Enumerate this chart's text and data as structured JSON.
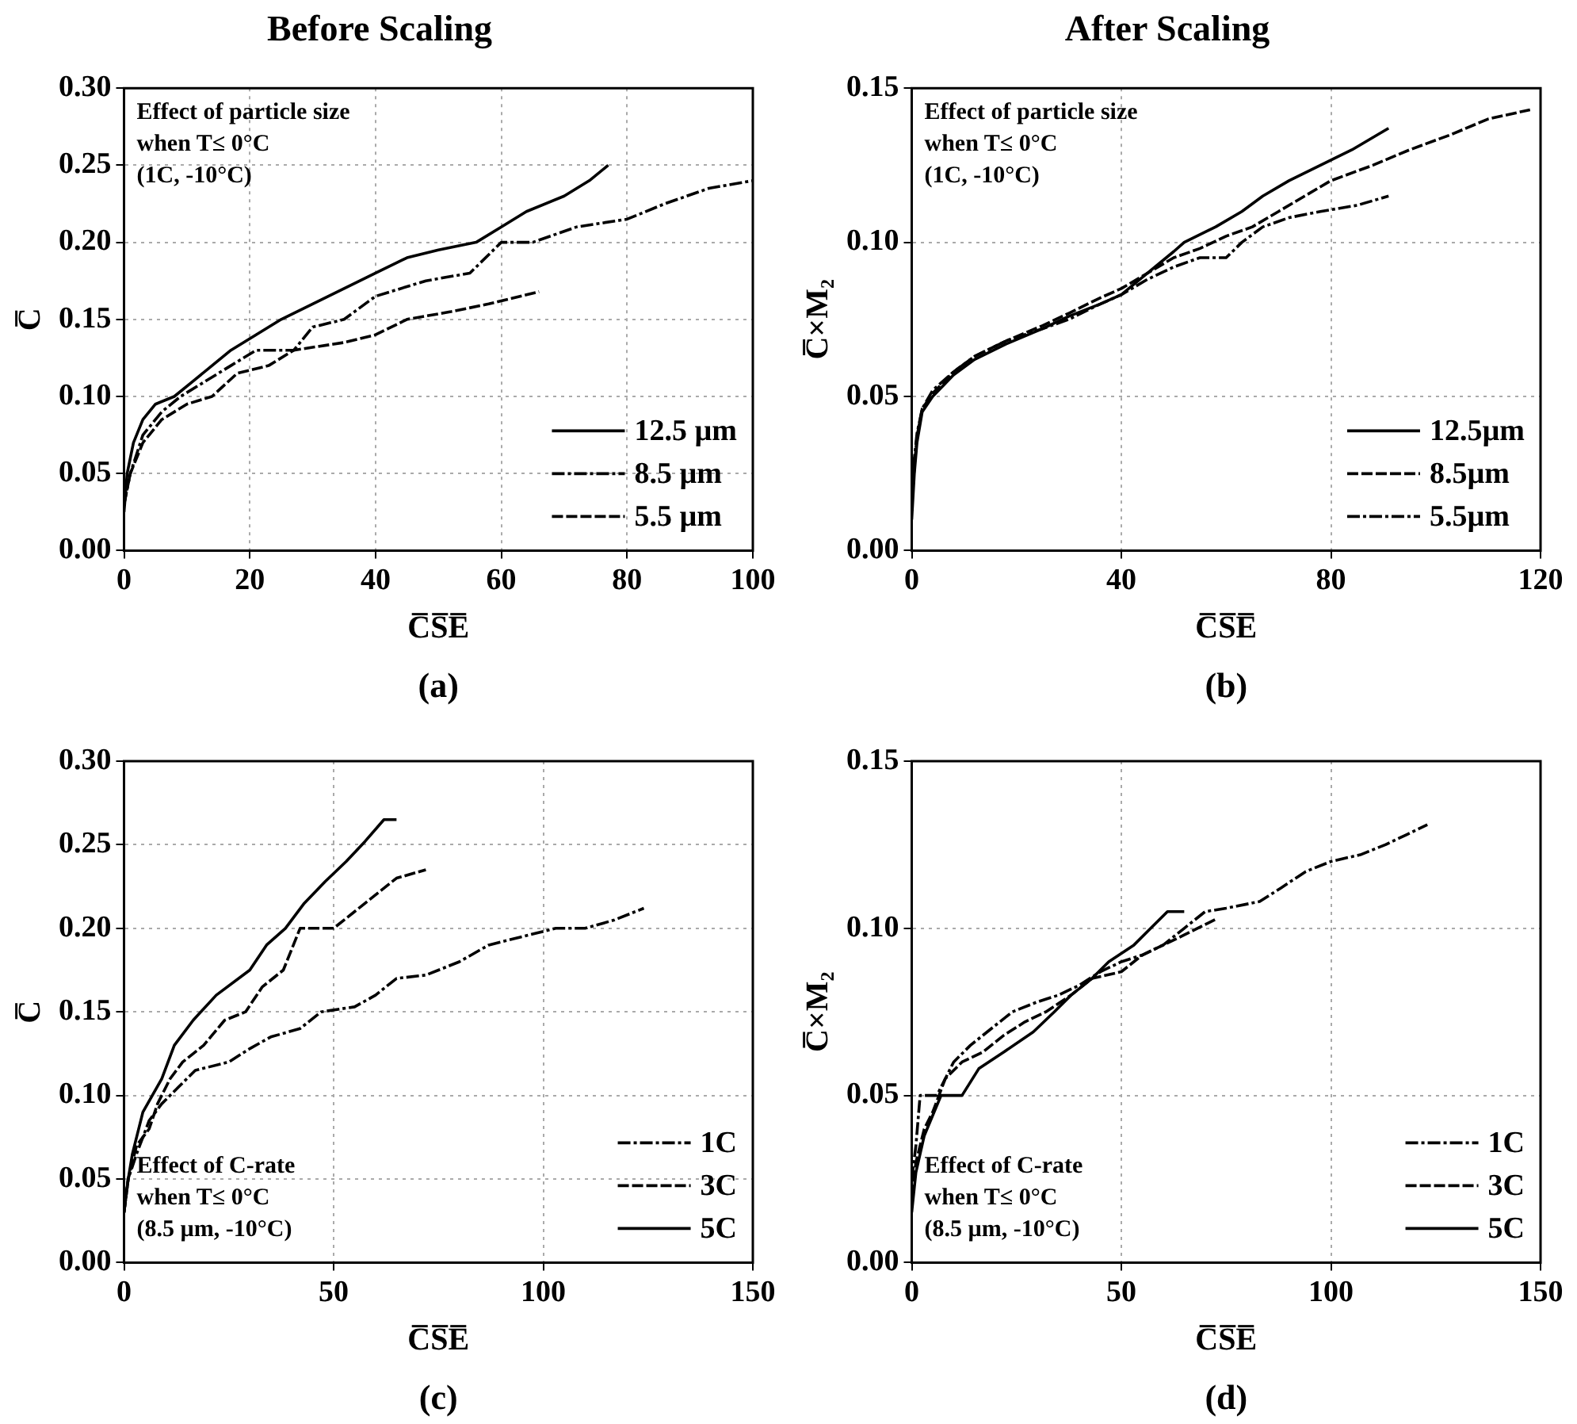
{
  "chart_data": [
    {
      "type": "line",
      "title": "Before Scaling",
      "xlabel": "C̅S̅E̅",
      "ylabel": "C̅",
      "annotations": [
        "Effect of particle size\nwhen T≤ 0°C\n(1C, -10°C)",
        "(a)"
      ],
      "xlim": [
        0,
        100
      ],
      "xticks": [
        0,
        20,
        40,
        60,
        80,
        100
      ],
      "ylim": [
        0,
        0.3
      ],
      "yticks": [
        {
          "value": 0,
          "label": "0.00"
        },
        {
          "value": 0.05,
          "label": "0.05"
        },
        {
          "value": 0.1,
          "label": "0.10"
        },
        {
          "value": 0.15,
          "label": "0.15"
        },
        {
          "value": 0.2,
          "label": "0.20"
        },
        {
          "value": 0.25,
          "label": "0.25"
        },
        {
          "value": 0.3,
          "label": "0.30"
        }
      ],
      "grid": true,
      "legend": "bottom right",
      "series": [
        {
          "name": "12.5 µm",
          "color": "#000000",
          "line_style": "solid",
          "x": [
            0,
            0.5,
            1.5,
            3,
            5,
            8,
            11,
            14,
            17,
            21,
            25,
            30,
            35,
            40,
            45,
            50,
            56,
            60,
            64,
            70,
            74,
            77
          ],
          "values": [
            0.025,
            0.05,
            0.07,
            0.085,
            0.095,
            0.1,
            0.11,
            0.12,
            0.13,
            0.14,
            0.15,
            0.16,
            0.17,
            0.18,
            0.19,
            0.195,
            0.2,
            0.21,
            0.22,
            0.23,
            0.24,
            0.25
          ]
        },
        {
          "name": "8.5 µm",
          "color": "#000000",
          "line_style": "dashdot",
          "x": [
            0,
            1,
            3,
            6,
            9,
            13,
            17,
            21,
            27,
            30,
            35,
            40,
            48,
            55,
            60,
            65,
            72,
            80,
            86,
            93,
            100
          ],
          "values": [
            0.03,
            0.05,
            0.075,
            0.09,
            0.1,
            0.11,
            0.12,
            0.13,
            0.13,
            0.145,
            0.15,
            0.165,
            0.175,
            0.18,
            0.2,
            0.2,
            0.21,
            0.215,
            0.225,
            0.235,
            0.24
          ]
        },
        {
          "name": "5.5 µm",
          "color": "#000000",
          "line_style": "dashed",
          "x": [
            0,
            1,
            3,
            6,
            10,
            14,
            18,
            23,
            27,
            35,
            40,
            45,
            52,
            58,
            66
          ],
          "values": [
            0.03,
            0.05,
            0.07,
            0.085,
            0.095,
            0.1,
            0.115,
            0.12,
            0.13,
            0.135,
            0.14,
            0.15,
            0.155,
            0.16,
            0.168
          ]
        }
      ]
    },
    {
      "type": "line",
      "title": "After Scaling",
      "xlabel": "C̅S̅E̅",
      "ylabel": "C̅×M₂",
      "annotations": [
        "Effect of particle size\nwhen T≤ 0°C\n(1C, -10°C)",
        "(b)"
      ],
      "xlim": [
        0,
        120
      ],
      "xticks": [
        0,
        40,
        80,
        120
      ],
      "ylim": [
        0,
        0.15
      ],
      "yticks": [
        {
          "value": 0,
          "label": "0.00"
        },
        {
          "value": 0.05,
          "label": "0.05"
        },
        {
          "value": 0.1,
          "label": "0.10"
        },
        {
          "value": 0.15,
          "label": "0.15"
        }
      ],
      "grid": true,
      "legend": "bottom right",
      "series": [
        {
          "name": "12.5µm",
          "color": "#000000",
          "line_style": "solid",
          "x": [
            0,
            0.5,
            1,
            2,
            4,
            8,
            12,
            18,
            25,
            30,
            36,
            40,
            45,
            50,
            52,
            58,
            63,
            67,
            72,
            78,
            84,
            89,
            91
          ],
          "values": [
            0.01,
            0.025,
            0.035,
            0.045,
            0.05,
            0.057,
            0.062,
            0.067,
            0.072,
            0.076,
            0.08,
            0.083,
            0.09,
            0.097,
            0.1,
            0.105,
            0.11,
            0.115,
            0.12,
            0.125,
            0.13,
            0.135,
            0.137
          ]
        },
        {
          "name": "8.5µm",
          "color": "#000000",
          "line_style": "dashed",
          "x": [
            0,
            0.5,
            1,
            2,
            4,
            8,
            12,
            18,
            25,
            30,
            36,
            40,
            45,
            50,
            55,
            60,
            65,
            70,
            75,
            80,
            88,
            95,
            103,
            110,
            118
          ],
          "values": [
            0.015,
            0.027,
            0.037,
            0.046,
            0.051,
            0.058,
            0.063,
            0.068,
            0.073,
            0.077,
            0.082,
            0.085,
            0.09,
            0.095,
            0.098,
            0.102,
            0.105,
            0.11,
            0.115,
            0.12,
            0.125,
            0.13,
            0.135,
            0.14,
            0.143
          ]
        },
        {
          "name": "5.5µm",
          "color": "#000000",
          "line_style": "dashdot",
          "x": [
            0,
            0.5,
            1,
            2,
            4,
            8,
            12,
            18,
            25,
            30,
            36,
            40,
            45,
            50,
            55,
            60,
            63,
            67,
            72,
            78,
            85,
            91
          ],
          "values": [
            0.02,
            0.03,
            0.038,
            0.046,
            0.052,
            0.058,
            0.063,
            0.068,
            0.072,
            0.075,
            0.08,
            0.083,
            0.088,
            0.092,
            0.095,
            0.095,
            0.1,
            0.105,
            0.108,
            0.11,
            0.112,
            0.115
          ]
        }
      ]
    },
    {
      "type": "line",
      "xlabel": "C̅S̅E̅",
      "ylabel": "C̅",
      "annotations": [
        "Effect of C-rate\nwhen T≤ 0°C\n(8.5 µm, -10°C)",
        "(c)"
      ],
      "xlim": [
        0,
        150
      ],
      "xticks": [
        0,
        50,
        100,
        150
      ],
      "ylim": [
        0,
        0.3
      ],
      "yticks": [
        {
          "value": 0,
          "label": "0.00"
        },
        {
          "value": 0.05,
          "label": "0.05"
        },
        {
          "value": 0.1,
          "label": "0.10"
        },
        {
          "value": 0.15,
          "label": "0.15"
        },
        {
          "value": 0.2,
          "label": "0.20"
        },
        {
          "value": 0.25,
          "label": "0.25"
        },
        {
          "value": 0.3,
          "label": "0.30"
        }
      ],
      "grid": true,
      "legend": "bottom right",
      "series": [
        {
          "name": "1C",
          "color": "#000000",
          "line_style": "dashdot",
          "x": [
            0,
            1,
            3,
            6,
            9,
            13,
            17,
            25,
            30,
            35,
            42,
            47,
            55,
            60,
            65,
            72,
            80,
            87,
            95,
            103,
            110,
            117,
            124
          ],
          "values": [
            0.03,
            0.05,
            0.065,
            0.085,
            0.095,
            0.105,
            0.115,
            0.12,
            0.128,
            0.135,
            0.14,
            0.15,
            0.153,
            0.16,
            0.17,
            0.172,
            0.18,
            0.19,
            0.195,
            0.2,
            0.2,
            0.205,
            0.212
          ]
        },
        {
          "name": "3C",
          "color": "#000000",
          "line_style": "dashed",
          "x": [
            0,
            1,
            3,
            6,
            8,
            11,
            14,
            19,
            24,
            29,
            33,
            38,
            42,
            50,
            55,
            60,
            65,
            72
          ],
          "values": [
            0.03,
            0.05,
            0.07,
            0.08,
            0.095,
            0.11,
            0.12,
            0.13,
            0.145,
            0.15,
            0.165,
            0.175,
            0.2,
            0.2,
            0.21,
            0.22,
            0.23,
            0.235
          ]
        },
        {
          "name": "5C",
          "color": "#000000",
          "line_style": "solid",
          "x": [
            0,
            1,
            2,
            4.5,
            9,
            12,
            16.5,
            22,
            30,
            34,
            38.5,
            43,
            48,
            53,
            57.5,
            62,
            65
          ],
          "values": [
            0.03,
            0.05,
            0.065,
            0.09,
            0.11,
            0.13,
            0.145,
            0.16,
            0.175,
            0.19,
            0.2,
            0.215,
            0.228,
            0.24,
            0.252,
            0.265,
            0.265
          ]
        }
      ]
    },
    {
      "type": "line",
      "xlabel": "C̅S̅E̅",
      "ylabel": "C̅×M₂",
      "annotations": [
        "Effect of C-rate\nwhen T≤ 0°C\n(8.5 µm, -10°C)",
        "(d)"
      ],
      "xlim": [
        0,
        150
      ],
      "xticks": [
        0,
        50,
        100,
        150
      ],
      "ylim": [
        0,
        0.15
      ],
      "yticks": [
        {
          "value": 0,
          "label": "0.00"
        },
        {
          "value": 0.05,
          "label": "0.05"
        },
        {
          "value": 0.1,
          "label": "0.10"
        },
        {
          "value": 0.15,
          "label": "0.15"
        }
      ],
      "grid": true,
      "legend": "bottom right",
      "series": [
        {
          "name": "1C",
          "color": "#000000",
          "line_style": "dashdot",
          "x": [
            0,
            1,
            2,
            6,
            10,
            14,
            19,
            24,
            30,
            35,
            40,
            45,
            50,
            55,
            60,
            65,
            70,
            75,
            83,
            88,
            94,
            100,
            107,
            113,
            118,
            123
          ],
          "values": [
            0.025,
            0.035,
            0.05,
            0.05,
            0.06,
            0.065,
            0.07,
            0.075,
            0.078,
            0.08,
            0.083,
            0.087,
            0.09,
            0.092,
            0.095,
            0.1,
            0.105,
            0.106,
            0.108,
            0.112,
            0.117,
            0.12,
            0.122,
            0.125,
            0.128,
            0.131
          ]
        },
        {
          "name": "3C",
          "color": "#000000",
          "line_style": "dashed",
          "x": [
            0,
            1,
            3,
            5,
            8,
            12,
            17,
            22,
            27,
            32,
            38,
            43,
            50,
            55,
            60,
            65,
            73
          ],
          "values": [
            0.02,
            0.03,
            0.04,
            0.045,
            0.055,
            0.06,
            0.063,
            0.068,
            0.072,
            0.075,
            0.08,
            0.085,
            0.087,
            0.092,
            0.095,
            0.098,
            0.103
          ]
        },
        {
          "name": "5C",
          "color": "#000000",
          "line_style": "solid",
          "x": [
            0,
            1,
            3,
            7,
            12,
            16,
            22,
            29,
            34,
            38,
            43,
            47,
            53,
            57,
            61,
            65
          ],
          "values": [
            0.015,
            0.027,
            0.038,
            0.05,
            0.05,
            0.058,
            0.063,
            0.069,
            0.075,
            0.08,
            0.085,
            0.09,
            0.095,
            0.1,
            0.105,
            0.105
          ]
        }
      ]
    }
  ]
}
